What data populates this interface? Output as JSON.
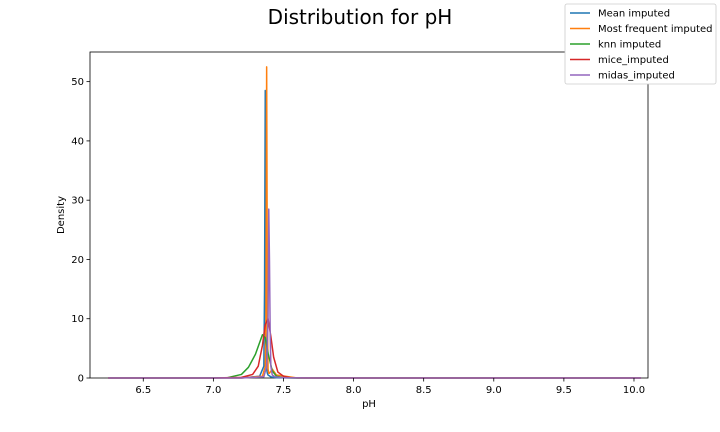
{
  "chart_data": {
    "type": "line",
    "title": "Distribution for pH",
    "xlabel": "pH",
    "ylabel": "Density",
    "xlim": [
      6.12,
      10.1
    ],
    "ylim": [
      0,
      55
    ],
    "xticks": [
      6.5,
      7.0,
      7.5,
      8.0,
      8.5,
      9.0,
      9.5,
      10.0
    ],
    "xtick_labels": [
      "6.5",
      "7.0",
      "7.5",
      "8.0",
      "8.5",
      "9.0",
      "9.5",
      "10.0"
    ],
    "yticks": [
      0,
      10,
      20,
      30,
      40,
      50
    ],
    "ytick_labels": [
      "0",
      "10",
      "20",
      "30",
      "40",
      "50"
    ],
    "grid": false,
    "legend_position": "upper-right-outside",
    "series": [
      {
        "name": "Mean imputed",
        "color": "#1f77b4",
        "x": [
          6.25,
          7.2,
          7.33,
          7.36,
          7.365,
          7.37,
          7.372,
          7.375,
          7.38,
          7.385,
          7.39,
          7.41,
          7.45,
          7.6,
          8.5,
          10.05
        ],
        "y": [
          0,
          0,
          0.3,
          2.0,
          15,
          48.5,
          30,
          8,
          1.5,
          0.8,
          0.5,
          0.2,
          0.05,
          0,
          0,
          0
        ]
      },
      {
        "name": "Most frequent imputed",
        "color": "#ff7f0e",
        "x": [
          6.25,
          7.2,
          7.35,
          7.37,
          7.375,
          7.38,
          7.383,
          7.386,
          7.39,
          7.395,
          7.4,
          7.42,
          7.45,
          7.6,
          8.5,
          10.05
        ],
        "y": [
          0,
          0,
          0.3,
          2.0,
          10,
          52.5,
          30,
          8,
          1.5,
          0.8,
          0.8,
          1.5,
          0.5,
          0,
          0,
          0
        ]
      },
      {
        "name": "knn imputed",
        "color": "#2ca02c",
        "x": [
          6.25,
          6.9,
          7.1,
          7.2,
          7.25,
          7.3,
          7.33,
          7.35,
          7.37,
          7.39,
          7.42,
          7.45,
          7.5,
          7.6,
          8.5,
          10.05
        ],
        "y": [
          0,
          0,
          0.05,
          0.6,
          1.8,
          4.0,
          6.0,
          7.3,
          6.8,
          4.2,
          1.2,
          0.3,
          0.05,
          0,
          0,
          0
        ]
      },
      {
        "name": "mice_imputed",
        "color": "#d62728",
        "x": [
          6.25,
          7.0,
          7.2,
          7.28,
          7.32,
          7.35,
          7.37,
          7.39,
          7.41,
          7.43,
          7.46,
          7.5,
          7.55,
          7.7,
          8.5,
          10.05
        ],
        "y": [
          0,
          0,
          0.1,
          0.6,
          2.0,
          5.5,
          9.0,
          10.0,
          7.0,
          3.5,
          1.0,
          0.3,
          0.05,
          0,
          0,
          0
        ]
      },
      {
        "name": "midas_imputed",
        "color": "#9467bd",
        "x": [
          6.25,
          7.2,
          7.36,
          7.38,
          7.39,
          7.395,
          7.4,
          7.405,
          7.41,
          7.42,
          7.44,
          7.5,
          7.7,
          8.5,
          9.5,
          10.05
        ],
        "y": [
          0,
          0,
          0.2,
          2.0,
          10,
          28.5,
          20,
          8,
          2.0,
          0.5,
          0.2,
          0.05,
          0,
          0,
          0,
          0
        ]
      }
    ]
  }
}
